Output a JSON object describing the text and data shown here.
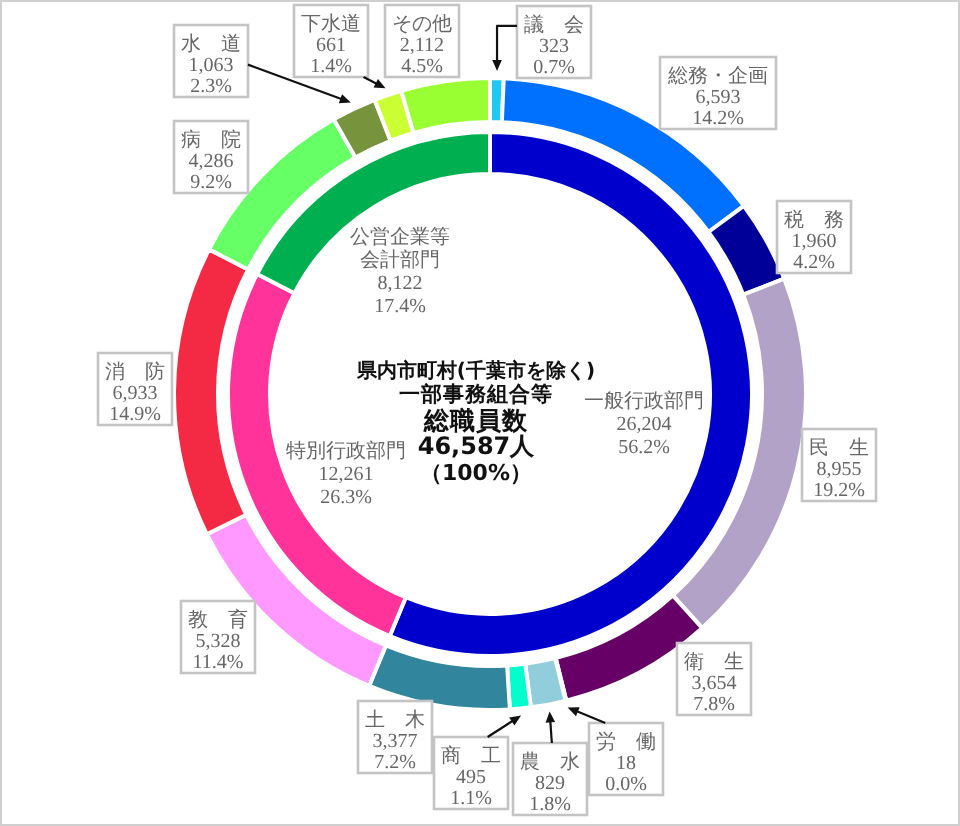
{
  "chart_data": [
    {
      "type": "donut",
      "categories": [
        "議　会",
        "総務・企画",
        "税　務",
        "民　生",
        "衛　生",
        "労　働",
        "農　水",
        "商　工",
        "土　木",
        "教　育",
        "消　防",
        "病　院",
        "水　道",
        "下水道",
        "その他"
      ],
      "values": [
        323,
        6593,
        1960,
        8955,
        3654,
        18,
        829,
        495,
        3377,
        5328,
        6933,
        4286,
        1063,
        661,
        2112
      ],
      "colors": [
        "#1ccbf5",
        "#0070ff",
        "#000099",
        "#b3a2c7",
        "#660066",
        "#7030a0",
        "#92cddc",
        "#00ffcc",
        "#31859c",
        "#ff99ff",
        "#f42a45",
        "#66ff66",
        "#77933c",
        "#ccff33",
        "#99ff33"
      ],
      "value_labels": [
        "323\n0.7%",
        "6,593\n14.2%",
        "1,960\n4.2%",
        "8,955\n19.2%",
        "3,654\n7.8%",
        "18\n0.0%",
        "829\n1.8%",
        "495\n1.1%",
        "3,377\n7.2%",
        "5,328\n11.4%",
        "6,933\n14.9%",
        "4,286\n9.2%",
        "1,063\n2.3%",
        "661\n1.4%",
        "2,112\n4.5%"
      ]
    },
    {
      "type": "donut",
      "categories": [
        "一般行政部門",
        "特別行政部門",
        "公営企業等会計部門"
      ],
      "values": [
        26204,
        12261,
        8122
      ],
      "colors": [
        "#0000cc",
        "#ff3399",
        "#00b050"
      ],
      "value_labels": [
        "26,204\n56.2%",
        "12,261\n26.3%",
        "8,122\n17.4%"
      ],
      "annotations": [
        "県内市町村(千葉市を除く)",
        "一部事務組合等",
        "総職員数",
        "46,587人",
        "（100%）"
      ]
    }
  ]
}
